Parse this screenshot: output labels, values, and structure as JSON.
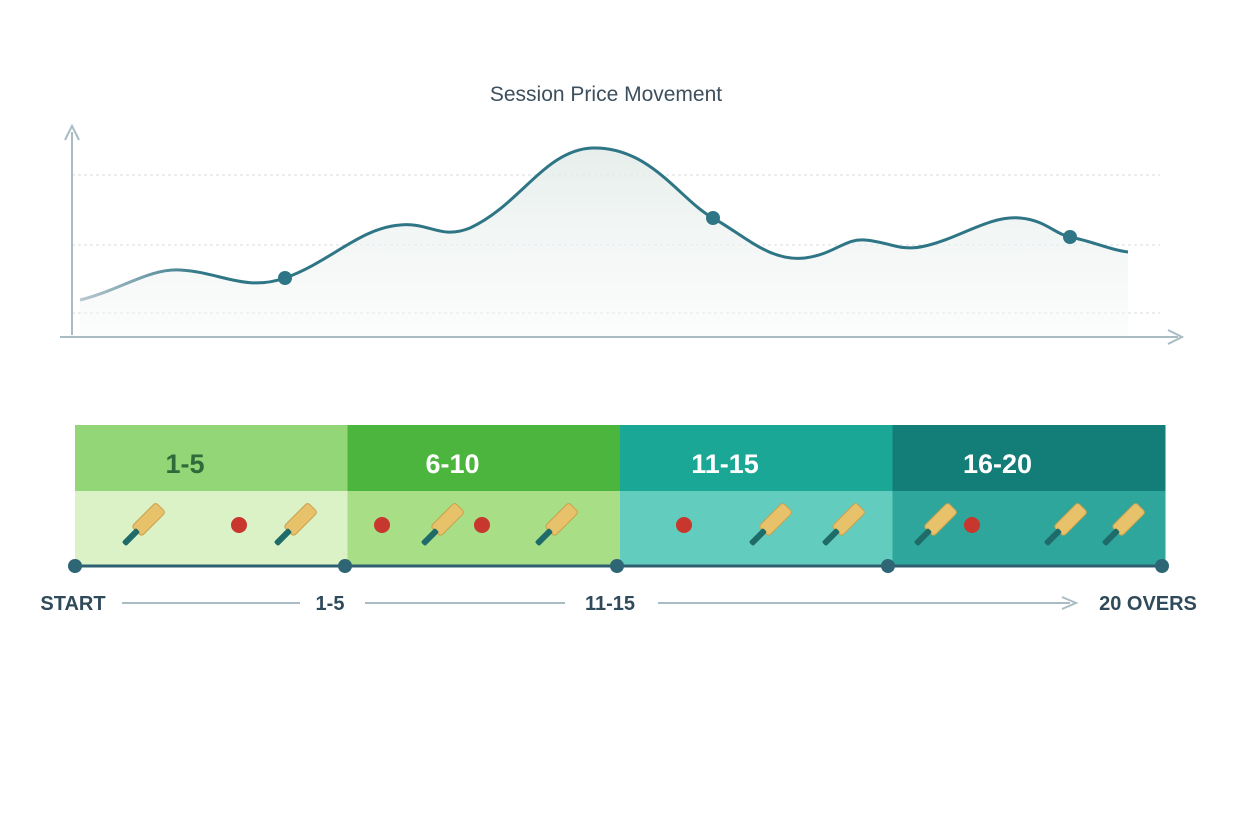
{
  "title": "Session Price Movement",
  "segments": [
    {
      "label": "1-5"
    },
    {
      "label": "6-10"
    },
    {
      "label": "11-15"
    },
    {
      "label": "16-20"
    }
  ],
  "timeline": {
    "labels": [
      "START",
      "1-5",
      "11-15",
      "20 OVERS"
    ]
  }
}
